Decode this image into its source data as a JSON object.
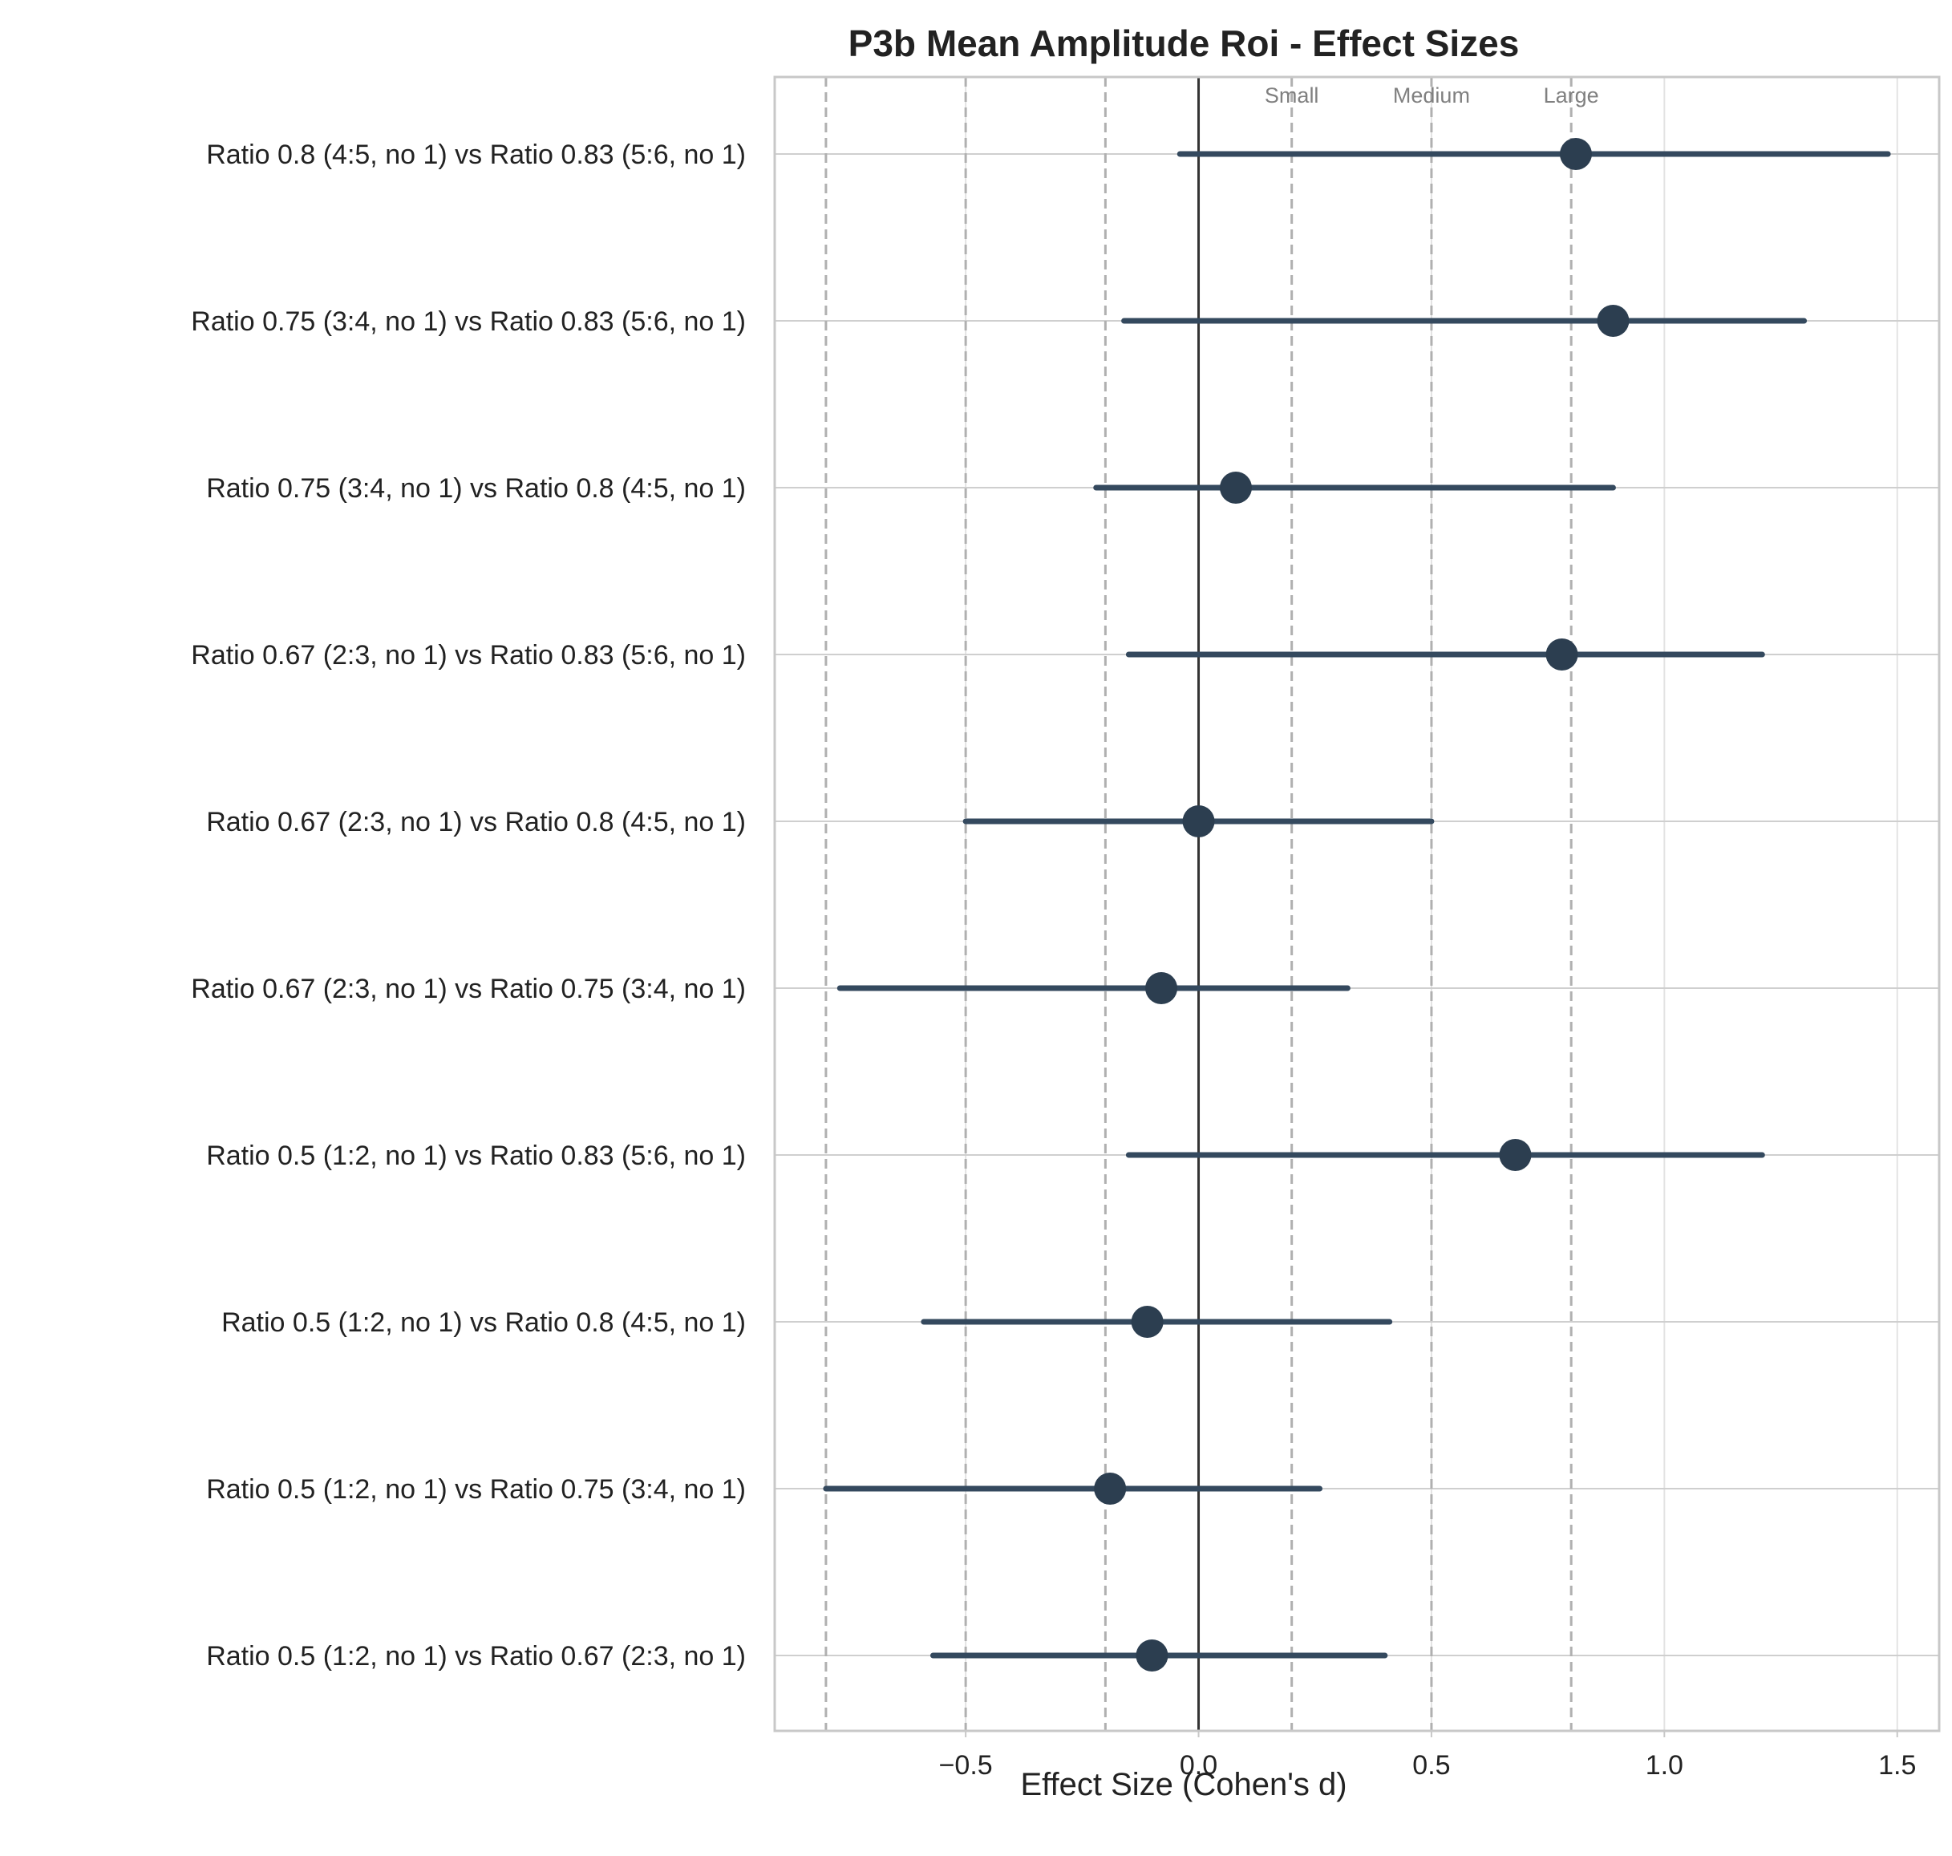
{
  "chart_data": {
    "type": "forest",
    "title": "P3b Mean Amplitude Roi - Effect Sizes",
    "xlabel": "Effect Size (Cohen's d)",
    "ylabel": "",
    "xlim": [
      -0.91,
      1.59
    ],
    "xticks": [
      -0.5,
      0.0,
      0.5,
      1.0,
      1.5
    ],
    "xtick_labels": [
      "−0.5",
      "0.0",
      "0.5",
      "1.0",
      "1.5"
    ],
    "grid": true,
    "reference_line": 0.0,
    "thresholds": [
      {
        "value": 0.2,
        "label": "Small"
      },
      {
        "value": 0.5,
        "label": "Medium"
      },
      {
        "value": 0.8,
        "label": "Large"
      },
      {
        "value": -0.2,
        "label": ""
      },
      {
        "value": -0.5,
        "label": ""
      },
      {
        "value": -0.8,
        "label": ""
      }
    ],
    "comparisons": [
      {
        "label": "Ratio 0.8 (4:5, no 1) vs Ratio 0.83 (5:6, no 1)",
        "d": 0.81,
        "ci_low": -0.04,
        "ci_high": 1.48
      },
      {
        "label": "Ratio 0.75 (3:4, no 1) vs Ratio 0.83 (5:6, no 1)",
        "d": 0.89,
        "ci_low": -0.16,
        "ci_high": 1.3
      },
      {
        "label": "Ratio 0.75 (3:4, no 1) vs Ratio 0.8 (4:5, no 1)",
        "d": 0.08,
        "ci_low": -0.22,
        "ci_high": 0.89
      },
      {
        "label": "Ratio 0.67 (2:3, no 1) vs Ratio 0.83 (5:6, no 1)",
        "d": 0.78,
        "ci_low": -0.15,
        "ci_high": 1.21
      },
      {
        "label": "Ratio 0.67 (2:3, no 1) vs Ratio 0.8 (4:5, no 1)",
        "d": 0.0,
        "ci_low": -0.5,
        "ci_high": 0.5
      },
      {
        "label": "Ratio 0.67 (2:3, no 1) vs Ratio 0.75 (3:4, no 1)",
        "d": -0.08,
        "ci_low": -0.77,
        "ci_high": 0.32
      },
      {
        "label": "Ratio 0.5 (1:2, no 1) vs Ratio 0.83 (5:6, no 1)",
        "d": 0.68,
        "ci_low": -0.15,
        "ci_high": 1.21
      },
      {
        "label": "Ratio 0.5 (1:2, no 1) vs Ratio 0.8 (4:5, no 1)",
        "d": -0.11,
        "ci_low": -0.59,
        "ci_high": 0.41
      },
      {
        "label": "Ratio 0.5 (1:2, no 1) vs Ratio 0.75 (3:4, no 1)",
        "d": -0.19,
        "ci_low": -0.8,
        "ci_high": 0.26
      },
      {
        "label": "Ratio 0.5 (1:2, no 1) vs Ratio 0.67 (2:3, no 1)",
        "d": -0.1,
        "ci_low": -0.57,
        "ci_high": 0.4
      }
    ],
    "colors": {
      "point": "#2c3e50",
      "ci_line": "#34495e",
      "threshold": "#b0b0b0",
      "zero_line": "#333333",
      "grid": "#e3e3e3",
      "row_grid": "#cfcfcf",
      "axis": "#c8c8c8"
    }
  }
}
